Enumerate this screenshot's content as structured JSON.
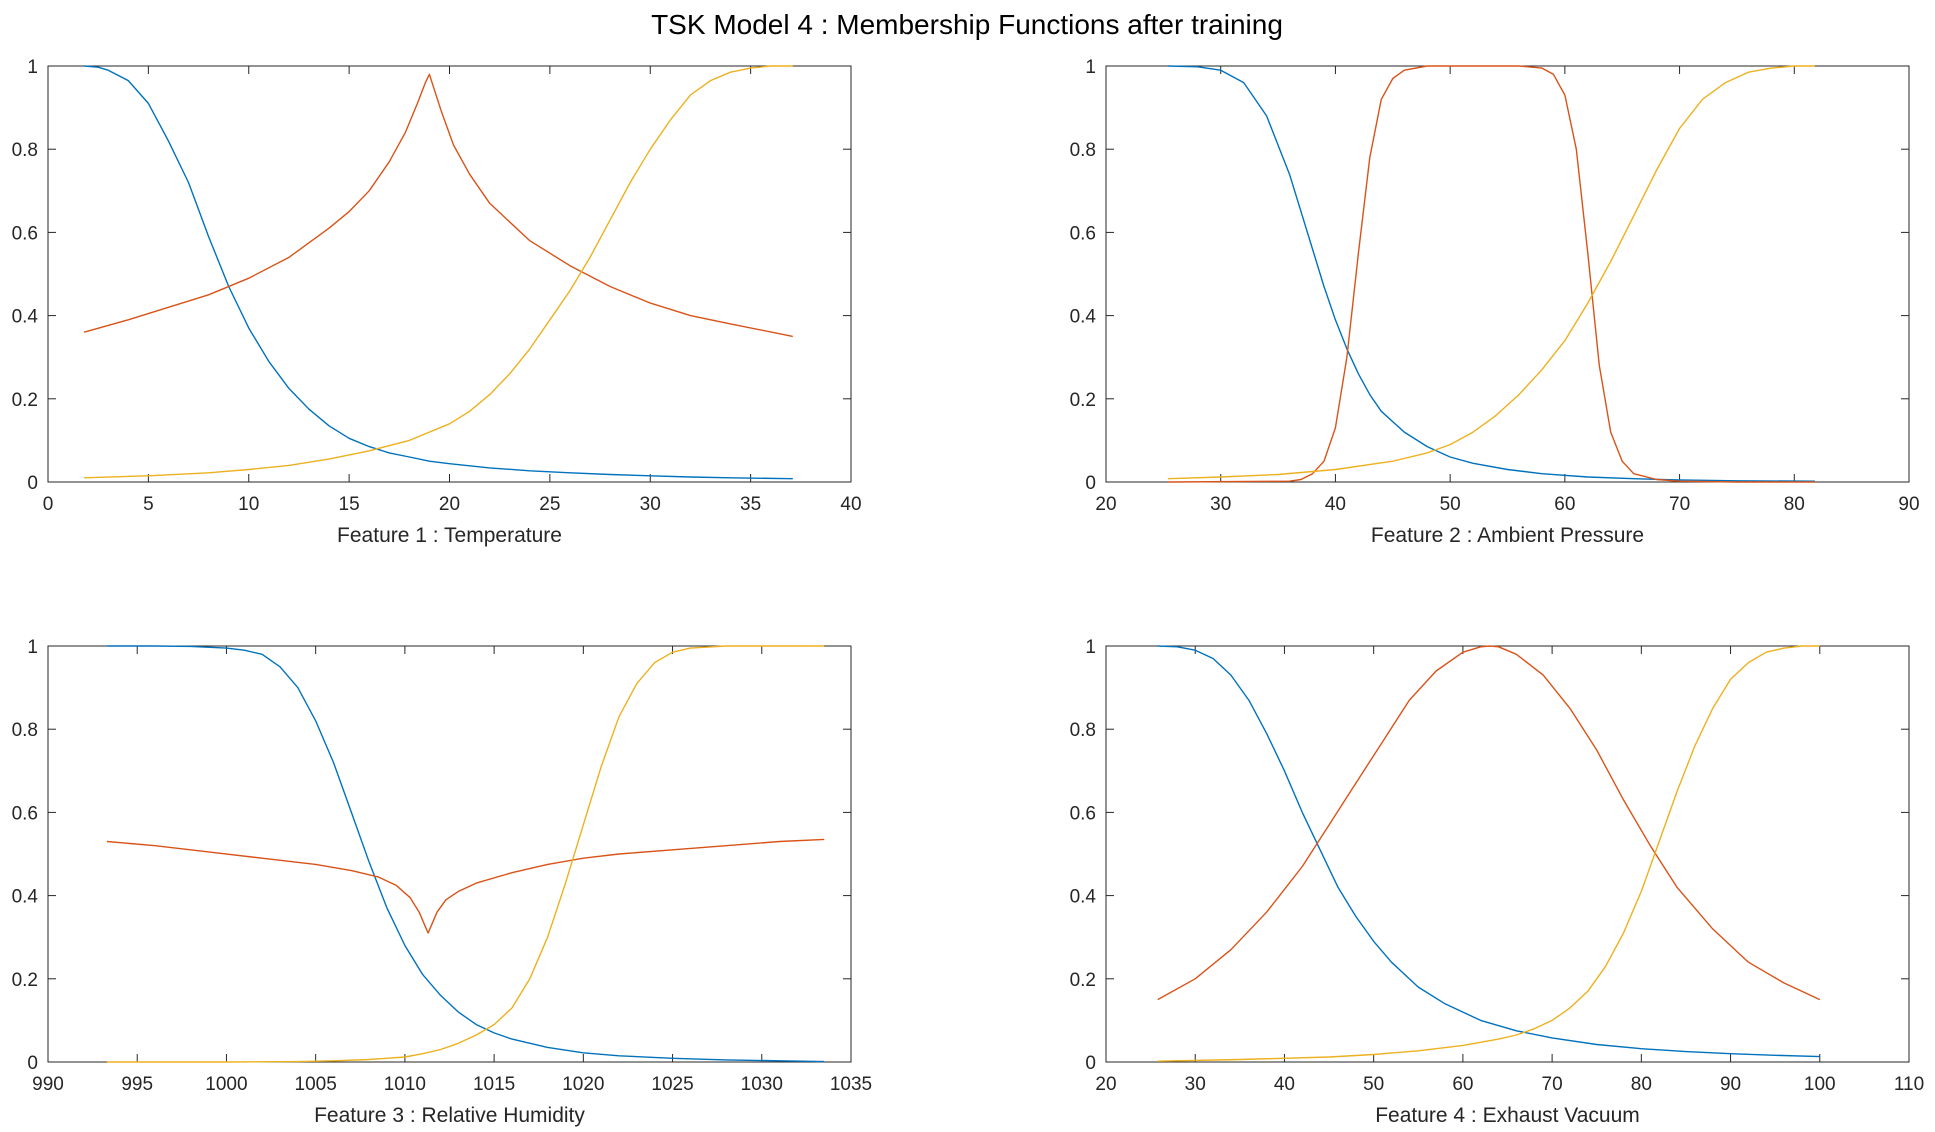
{
  "figure_title": "TSK Model 4 : Membership Functions after training",
  "colors": {
    "mf1": "#0072BD",
    "mf2": "#D95319",
    "mf3": "#EDB120"
  },
  "chart_data": [
    {
      "type": "line",
      "xlabel": "Feature 1  :  Temperature",
      "xlim": [
        0,
        40
      ],
      "ylim": [
        0,
        1
      ],
      "xticks": [
        0,
        5,
        10,
        15,
        20,
        25,
        30,
        35,
        40
      ],
      "yticks": [
        0,
        0.2,
        0.4,
        0.6,
        0.8,
        1
      ],
      "xtick_labels": [
        "0",
        "5",
        "10",
        "15",
        "20",
        "25",
        "30",
        "35",
        "40"
      ],
      "ytick_labels": [
        "0",
        "0.2",
        "0.4",
        "0.6",
        "0.8",
        "1"
      ],
      "series": [
        {
          "color": "#0072BD",
          "x": [
            1.8,
            2.5,
            3,
            4,
            5,
            6,
            7,
            8,
            9,
            10,
            11,
            12,
            13,
            14,
            15,
            16,
            17,
            18,
            19,
            20,
            22,
            24,
            26,
            28,
            30,
            32,
            34,
            37.1
          ],
          "y": [
            1.0,
            0.997,
            0.99,
            0.965,
            0.91,
            0.82,
            0.72,
            0.59,
            0.47,
            0.37,
            0.29,
            0.225,
            0.175,
            0.135,
            0.105,
            0.085,
            0.07,
            0.06,
            0.05,
            0.044,
            0.034,
            0.027,
            0.022,
            0.018,
            0.015,
            0.012,
            0.01,
            0.008
          ]
        },
        {
          "color": "#D95319",
          "x": [
            1.8,
            4,
            6,
            8,
            10,
            12,
            14,
            15,
            16,
            17,
            17.8,
            18.4,
            18.8,
            19.0,
            19.2,
            19.6,
            20.2,
            21,
            22,
            24,
            26,
            28,
            30,
            32,
            34,
            37.1
          ],
          "y": [
            0.36,
            0.39,
            0.42,
            0.45,
            0.49,
            0.54,
            0.61,
            0.65,
            0.7,
            0.77,
            0.84,
            0.91,
            0.96,
            0.98,
            0.95,
            0.89,
            0.81,
            0.74,
            0.67,
            0.58,
            0.52,
            0.47,
            0.43,
            0.4,
            0.38,
            0.35
          ]
        },
        {
          "color": "#EDB120",
          "x": [
            1.8,
            5,
            8,
            10,
            12,
            14,
            16,
            18,
            20,
            21,
            22,
            23,
            24,
            25,
            26,
            27,
            28,
            29,
            30,
            31,
            32,
            33,
            34,
            35,
            36,
            37.1
          ],
          "y": [
            0.01,
            0.015,
            0.022,
            0.03,
            0.04,
            0.055,
            0.075,
            0.1,
            0.14,
            0.17,
            0.21,
            0.26,
            0.32,
            0.39,
            0.46,
            0.54,
            0.63,
            0.72,
            0.8,
            0.87,
            0.93,
            0.965,
            0.985,
            0.995,
            1.0,
            1.0
          ]
        }
      ]
    },
    {
      "type": "line",
      "xlabel": "Feature 2  :  Ambient Pressure",
      "xlim": [
        20,
        90
      ],
      "ylim": [
        0,
        1
      ],
      "xticks": [
        20,
        30,
        40,
        50,
        60,
        70,
        80,
        90
      ],
      "yticks": [
        0,
        0.2,
        0.4,
        0.6,
        0.8,
        1
      ],
      "xtick_labels": [
        "20",
        "30",
        "40",
        "50",
        "60",
        "70",
        "80",
        "90"
      ],
      "ytick_labels": [
        "0",
        "0.2",
        "0.4",
        "0.6",
        "0.8",
        "1"
      ],
      "series": [
        {
          "color": "#0072BD",
          "x": [
            25.4,
            28,
            30,
            32,
            34,
            36,
            37,
            38,
            39,
            40,
            41,
            42,
            43,
            44,
            46,
            48,
            50,
            52,
            55,
            58,
            62,
            66,
            70,
            75,
            81.8
          ],
          "y": [
            1.0,
            0.998,
            0.99,
            0.96,
            0.88,
            0.74,
            0.65,
            0.56,
            0.47,
            0.39,
            0.32,
            0.26,
            0.21,
            0.17,
            0.12,
            0.085,
            0.06,
            0.045,
            0.03,
            0.02,
            0.012,
            0.008,
            0.005,
            0.003,
            0.002
          ]
        },
        {
          "color": "#D95319",
          "x": [
            25.4,
            36,
            37,
            38,
            39,
            40,
            41,
            42,
            43,
            44,
            45,
            46,
            48,
            52,
            56,
            58,
            59,
            60,
            61,
            62,
            63,
            64,
            65,
            66,
            68,
            70,
            75,
            81.8
          ],
          "y": [
            0.0,
            0.002,
            0.006,
            0.02,
            0.05,
            0.13,
            0.3,
            0.55,
            0.78,
            0.92,
            0.97,
            0.99,
            1.0,
            1.0,
            1.0,
            0.995,
            0.98,
            0.93,
            0.8,
            0.55,
            0.28,
            0.12,
            0.05,
            0.02,
            0.006,
            0.002,
            0.0,
            0.0
          ]
        },
        {
          "color": "#EDB120",
          "x": [
            25.4,
            30,
            35,
            40,
            45,
            48,
            50,
            52,
            54,
            56,
            58,
            60,
            62,
            64,
            66,
            68,
            70,
            72,
            74,
            76,
            78,
            80,
            81.8
          ],
          "y": [
            0.008,
            0.012,
            0.018,
            0.03,
            0.05,
            0.07,
            0.09,
            0.12,
            0.16,
            0.21,
            0.27,
            0.34,
            0.43,
            0.53,
            0.64,
            0.75,
            0.85,
            0.92,
            0.96,
            0.985,
            0.995,
            1.0,
            1.0
          ]
        }
      ]
    },
    {
      "type": "line",
      "xlabel": "Feature 3  :  Relative Humidity",
      "xlim": [
        990,
        1035
      ],
      "ylim": [
        0,
        1
      ],
      "xticks": [
        990,
        995,
        1000,
        1005,
        1010,
        1015,
        1020,
        1025,
        1030,
        1035
      ],
      "yticks": [
        0,
        0.2,
        0.4,
        0.6,
        0.8,
        1
      ],
      "xtick_labels": [
        "990",
        "995",
        "1000",
        "1005",
        "1010",
        "1015",
        "1020",
        "1025",
        "1030",
        "1035"
      ],
      "ytick_labels": [
        "0",
        "0.2",
        "0.4",
        "0.6",
        "0.8",
        "1"
      ],
      "series": [
        {
          "color": "#0072BD",
          "x": [
            993.3,
            996,
            998,
            1000,
            1001,
            1002,
            1003,
            1004,
            1005,
            1006,
            1007,
            1008,
            1009,
            1010,
            1011,
            1012,
            1013,
            1014,
            1015,
            1016,
            1018,
            1020,
            1022,
            1025,
            1028,
            1031,
            1033.5
          ],
          "y": [
            1.0,
            1.0,
            0.999,
            0.995,
            0.99,
            0.98,
            0.95,
            0.9,
            0.82,
            0.72,
            0.6,
            0.48,
            0.37,
            0.28,
            0.21,
            0.16,
            0.12,
            0.09,
            0.07,
            0.055,
            0.035,
            0.022,
            0.015,
            0.009,
            0.005,
            0.003,
            0.001
          ]
        },
        {
          "color": "#D95319",
          "x": [
            993.3,
            996,
            999,
            1002,
            1005,
            1007,
            1008.5,
            1009.5,
            1010.3,
            1010.8,
            1011.1,
            1011.3,
            1011.5,
            1011.8,
            1012.3,
            1013,
            1014,
            1016,
            1018,
            1020,
            1022,
            1025,
            1028,
            1031,
            1033.5
          ],
          "y": [
            0.53,
            0.52,
            0.505,
            0.49,
            0.475,
            0.46,
            0.445,
            0.425,
            0.395,
            0.36,
            0.33,
            0.31,
            0.33,
            0.36,
            0.39,
            0.41,
            0.43,
            0.455,
            0.475,
            0.49,
            0.5,
            0.51,
            0.52,
            0.53,
            0.535
          ]
        },
        {
          "color": "#EDB120",
          "x": [
            993.3,
            1000,
            1004,
            1006,
            1008,
            1010,
            1011,
            1012,
            1013,
            1014,
            1015,
            1016,
            1017,
            1018,
            1019,
            1020,
            1021,
            1022,
            1023,
            1024,
            1025,
            1026,
            1028,
            1031,
            1033.5
          ],
          "y": [
            0.0,
            0.0,
            0.001,
            0.003,
            0.006,
            0.012,
            0.02,
            0.03,
            0.045,
            0.065,
            0.09,
            0.13,
            0.2,
            0.3,
            0.43,
            0.57,
            0.71,
            0.83,
            0.91,
            0.96,
            0.985,
            0.995,
            1.0,
            1.0,
            1.0
          ]
        }
      ]
    },
    {
      "type": "line",
      "xlabel": "Feature 4  :  Exhaust Vacuum",
      "xlim": [
        20,
        110
      ],
      "ylim": [
        0,
        1
      ],
      "xticks": [
        20,
        30,
        40,
        50,
        60,
        70,
        80,
        90,
        100,
        110
      ],
      "yticks": [
        0,
        0.2,
        0.4,
        0.6,
        0.8,
        1
      ],
      "xtick_labels": [
        "20",
        "30",
        "40",
        "50",
        "60",
        "70",
        "80",
        "90",
        "100",
        "110"
      ],
      "ytick_labels": [
        "0",
        "0.2",
        "0.4",
        "0.6",
        "0.8",
        "1"
      ],
      "series": [
        {
          "color": "#0072BD",
          "x": [
            25.8,
            28,
            30,
            32,
            34,
            36,
            38,
            40,
            42,
            44,
            46,
            48,
            50,
            52,
            55,
            58,
            62,
            66,
            70,
            75,
            80,
            85,
            90,
            95,
            100
          ],
          "y": [
            1.0,
            0.998,
            0.99,
            0.97,
            0.93,
            0.87,
            0.79,
            0.7,
            0.6,
            0.51,
            0.42,
            0.35,
            0.29,
            0.24,
            0.18,
            0.14,
            0.1,
            0.075,
            0.058,
            0.042,
            0.032,
            0.025,
            0.02,
            0.016,
            0.013
          ]
        },
        {
          "color": "#D95319",
          "x": [
            25.8,
            30,
            34,
            38,
            42,
            45,
            48,
            51,
            54,
            57,
            60,
            62,
            63,
            64,
            66,
            69,
            72,
            75,
            78,
            81,
            84,
            88,
            92,
            96,
            100
          ],
          "y": [
            0.15,
            0.2,
            0.27,
            0.36,
            0.47,
            0.57,
            0.67,
            0.77,
            0.87,
            0.94,
            0.985,
            0.998,
            1.0,
            0.998,
            0.98,
            0.93,
            0.85,
            0.75,
            0.63,
            0.52,
            0.42,
            0.32,
            0.24,
            0.19,
            0.15
          ]
        },
        {
          "color": "#EDB120",
          "x": [
            25.8,
            35,
            45,
            50,
            55,
            60,
            64,
            66,
            68,
            70,
            72,
            74,
            76,
            78,
            80,
            82,
            84,
            86,
            88,
            90,
            92,
            94,
            96,
            98,
            100
          ],
          "y": [
            0.002,
            0.006,
            0.012,
            0.018,
            0.027,
            0.04,
            0.055,
            0.065,
            0.08,
            0.1,
            0.13,
            0.17,
            0.23,
            0.31,
            0.41,
            0.53,
            0.65,
            0.76,
            0.85,
            0.92,
            0.96,
            0.985,
            0.995,
            1.0,
            1.0
          ]
        }
      ]
    }
  ]
}
